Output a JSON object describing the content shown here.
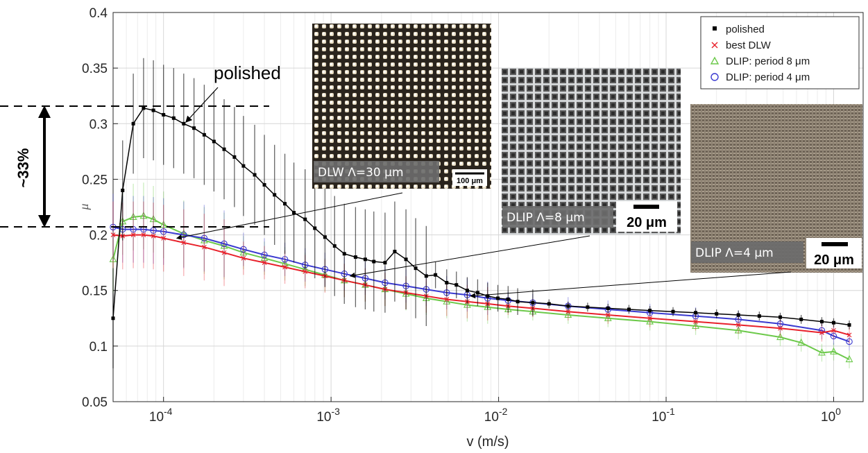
{
  "chart_data": {
    "type": "line",
    "xlabel": "v (m/s)",
    "ylabel": "μ",
    "xscale": "log",
    "xlim": [
      5e-05,
      1.5
    ],
    "ylim": [
      0.05,
      0.4
    ],
    "grid": true,
    "legend_position": "top-right",
    "x_ticks": [
      {
        "value": 0.0001,
        "base": "10",
        "exp": "-4"
      },
      {
        "value": 0.001,
        "base": "10",
        "exp": "-3"
      },
      {
        "value": 0.01,
        "base": "10",
        "exp": "-2"
      },
      {
        "value": 0.1,
        "base": "10",
        "exp": "-1"
      },
      {
        "value": 1,
        "base": "10",
        "exp": "0"
      }
    ],
    "y_ticks": [
      {
        "value": 0.05,
        "label": "0.05"
      },
      {
        "value": 0.1,
        "label": "0.1"
      },
      {
        "value": 0.15,
        "label": "0.15"
      },
      {
        "value": 0.2,
        "label": "0.2"
      },
      {
        "value": 0.25,
        "label": "0.25"
      },
      {
        "value": 0.3,
        "label": "0.3"
      },
      {
        "value": 0.35,
        "label": "0.35"
      },
      {
        "value": 0.4,
        "label": "0.4"
      }
    ],
    "series": [
      {
        "name": "polished",
        "color": "#000000",
        "marker": "square",
        "points": [
          [
            5e-05,
            0.125
          ],
          [
            5.7e-05,
            0.24
          ],
          [
            6.6e-05,
            0.3
          ],
          [
            7.6e-05,
            0.314
          ],
          [
            8.7e-05,
            0.312
          ],
          [
            0.0001,
            0.308
          ],
          [
            0.000115,
            0.305
          ],
          [
            0.000132,
            0.3
          ],
          [
            0.000152,
            0.296
          ],
          [
            0.000175,
            0.29
          ],
          [
            0.0002,
            0.284
          ],
          [
            0.00023,
            0.277
          ],
          [
            0.000265,
            0.27
          ],
          [
            0.0003,
            0.262
          ],
          [
            0.00035,
            0.254
          ],
          [
            0.0004,
            0.245
          ],
          [
            0.00046,
            0.236
          ],
          [
            0.00053,
            0.228
          ],
          [
            0.0006,
            0.22
          ],
          [
            0.0007,
            0.214
          ],
          [
            0.0008,
            0.206
          ],
          [
            0.00092,
            0.198
          ],
          [
            0.00105,
            0.19
          ],
          [
            0.0012,
            0.183
          ],
          [
            0.0014,
            0.18
          ],
          [
            0.0016,
            0.178
          ],
          [
            0.0018,
            0.176
          ],
          [
            0.0021,
            0.175
          ],
          [
            0.0024,
            0.185
          ],
          [
            0.0028,
            0.178
          ],
          [
            0.0032,
            0.17
          ],
          [
            0.0037,
            0.163
          ],
          [
            0.0042,
            0.164
          ],
          [
            0.0049,
            0.157
          ],
          [
            0.0056,
            0.155
          ],
          [
            0.0065,
            0.15
          ],
          [
            0.0075,
            0.148
          ],
          [
            0.0086,
            0.145
          ],
          [
            0.0099,
            0.143
          ],
          [
            0.0114,
            0.142
          ],
          [
            0.013,
            0.14
          ],
          [
            0.016,
            0.139
          ],
          [
            0.02,
            0.138
          ],
          [
            0.026,
            0.136
          ],
          [
            0.034,
            0.135
          ],
          [
            0.045,
            0.134
          ],
          [
            0.06,
            0.133
          ],
          [
            0.08,
            0.132
          ],
          [
            0.11,
            0.131
          ],
          [
            0.15,
            0.13
          ],
          [
            0.2,
            0.129
          ],
          [
            0.27,
            0.128
          ],
          [
            0.36,
            0.127
          ],
          [
            0.48,
            0.126
          ],
          [
            0.64,
            0.124
          ],
          [
            0.85,
            0.122
          ],
          [
            1.0,
            0.121
          ],
          [
            1.24,
            0.119
          ]
        ]
      },
      {
        "name": "best DLW",
        "color": "#e8202a",
        "marker": "x",
        "points": [
          [
            5e-05,
            0.2
          ],
          [
            5.7e-05,
            0.199
          ],
          [
            6.6e-05,
            0.2
          ],
          [
            7.6e-05,
            0.2
          ],
          [
            8.7e-05,
            0.199
          ],
          [
            0.0001,
            0.197
          ],
          [
            0.000132,
            0.193
          ],
          [
            0.000175,
            0.189
          ],
          [
            0.00023,
            0.184
          ],
          [
            0.0003,
            0.179
          ],
          [
            0.0004,
            0.175
          ],
          [
            0.00053,
            0.171
          ],
          [
            0.0007,
            0.167
          ],
          [
            0.00092,
            0.163
          ],
          [
            0.0012,
            0.159
          ],
          [
            0.0016,
            0.155
          ],
          [
            0.0021,
            0.151
          ],
          [
            0.0028,
            0.148
          ],
          [
            0.0037,
            0.145
          ],
          [
            0.0049,
            0.142
          ],
          [
            0.0065,
            0.14
          ],
          [
            0.0086,
            0.138
          ],
          [
            0.0114,
            0.136
          ],
          [
            0.016,
            0.134
          ],
          [
            0.026,
            0.131
          ],
          [
            0.045,
            0.128
          ],
          [
            0.08,
            0.125
          ],
          [
            0.15,
            0.122
          ],
          [
            0.27,
            0.119
          ],
          [
            0.48,
            0.116
          ],
          [
            0.85,
            0.112
          ],
          [
            1.0,
            0.114
          ],
          [
            1.24,
            0.11
          ]
        ]
      },
      {
        "name": "DLIP: period 8 μm",
        "color": "#6cc94a",
        "marker": "triangle",
        "points": [
          [
            5e-05,
            0.178
          ],
          [
            5.7e-05,
            0.212
          ],
          [
            6.6e-05,
            0.216
          ],
          [
            7.6e-05,
            0.217
          ],
          [
            8.7e-05,
            0.214
          ],
          [
            0.0001,
            0.209
          ],
          [
            0.000132,
            0.201
          ],
          [
            0.000175,
            0.195
          ],
          [
            0.00023,
            0.19
          ],
          [
            0.0003,
            0.184
          ],
          [
            0.0004,
            0.179
          ],
          [
            0.00053,
            0.174
          ],
          [
            0.0007,
            0.169
          ],
          [
            0.00092,
            0.164
          ],
          [
            0.0012,
            0.159
          ],
          [
            0.0016,
            0.155
          ],
          [
            0.0021,
            0.151
          ],
          [
            0.0028,
            0.147
          ],
          [
            0.0037,
            0.143
          ],
          [
            0.0049,
            0.14
          ],
          [
            0.0065,
            0.137
          ],
          [
            0.0086,
            0.135
          ],
          [
            0.0114,
            0.133
          ],
          [
            0.016,
            0.131
          ],
          [
            0.026,
            0.128
          ],
          [
            0.045,
            0.125
          ],
          [
            0.08,
            0.122
          ],
          [
            0.15,
            0.118
          ],
          [
            0.27,
            0.114
          ],
          [
            0.48,
            0.108
          ],
          [
            0.64,
            0.103
          ],
          [
            0.85,
            0.094
          ],
          [
            1.0,
            0.095
          ],
          [
            1.24,
            0.088
          ]
        ]
      },
      {
        "name": "DLIP: period 4 μm",
        "color": "#3a3ad0",
        "marker": "circle",
        "points": [
          [
            5e-05,
            0.207
          ],
          [
            5.7e-05,
            0.205
          ],
          [
            6.6e-05,
            0.205
          ],
          [
            7.6e-05,
            0.205
          ],
          [
            8.7e-05,
            0.204
          ],
          [
            0.0001,
            0.203
          ],
          [
            0.000132,
            0.2
          ],
          [
            0.000175,
            0.197
          ],
          [
            0.00023,
            0.192
          ],
          [
            0.0003,
            0.187
          ],
          [
            0.0004,
            0.182
          ],
          [
            0.00053,
            0.178
          ],
          [
            0.0007,
            0.173
          ],
          [
            0.00092,
            0.169
          ],
          [
            0.0012,
            0.165
          ],
          [
            0.0016,
            0.161
          ],
          [
            0.0021,
            0.157
          ],
          [
            0.0028,
            0.154
          ],
          [
            0.0037,
            0.151
          ],
          [
            0.0049,
            0.148
          ],
          [
            0.0065,
            0.146
          ],
          [
            0.0086,
            0.143
          ],
          [
            0.0114,
            0.141
          ],
          [
            0.016,
            0.139
          ],
          [
            0.026,
            0.136
          ],
          [
            0.045,
            0.133
          ],
          [
            0.08,
            0.13
          ],
          [
            0.15,
            0.127
          ],
          [
            0.27,
            0.124
          ],
          [
            0.48,
            0.12
          ],
          [
            0.85,
            0.114
          ],
          [
            1.0,
            0.109
          ],
          [
            1.24,
            0.104
          ]
        ]
      }
    ],
    "annotations": [
      {
        "id": "polished-callout",
        "text": "polished",
        "from": [
          0.0002,
          0.33
        ],
        "to": [
          0.00012,
          0.295
        ]
      },
      {
        "id": "difference",
        "text": "~33%",
        "y_top": 0.315,
        "y_bottom": 0.205
      }
    ],
    "insets": [
      {
        "id": "dlw",
        "label": "DLW Λ=30 μm",
        "scale_bar": "100 μm",
        "points_to": [
          0.00012,
          0.197
        ]
      },
      {
        "id": "dlip8",
        "label": "DLIP Λ=8 μm",
        "scale_bar": "20 μm",
        "points_to": [
          0.0013,
          0.163
        ]
      },
      {
        "id": "dlip4",
        "label": "DLIP Λ=4 μm",
        "scale_bar": "20 μm",
        "points_to": [
          0.0068,
          0.145
        ]
      }
    ]
  }
}
